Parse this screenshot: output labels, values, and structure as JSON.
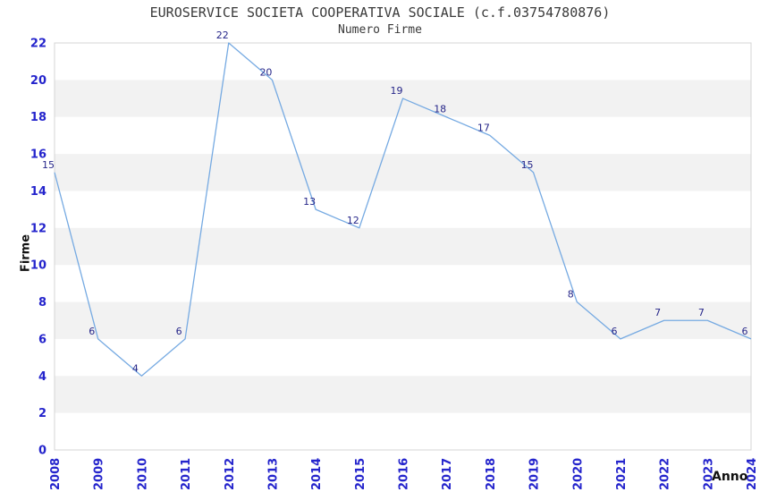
{
  "chart_data": {
    "type": "line",
    "title": "EUROSERVICE SOCIETA COOPERATIVA SOCIALE (c.f.03754780876)",
    "subtitle": "Numero Firme",
    "xlabel": "Anno",
    "ylabel": "Firme",
    "x": [
      "2008",
      "2009",
      "2010",
      "2011",
      "2012",
      "2013",
      "2014",
      "2015",
      "2016",
      "2017",
      "2018",
      "2019",
      "2020",
      "2021",
      "2022",
      "2023",
      "2024"
    ],
    "series": [
      {
        "name": "Numero Firme",
        "values": [
          15,
          6,
          4,
          6,
          22,
          20,
          13,
          12,
          19,
          18,
          17,
          15,
          8,
          6,
          7,
          7,
          6
        ]
      }
    ],
    "point_labels_shown": true,
    "ylim": [
      0,
      22
    ],
    "yticks": [
      0,
      2,
      4,
      6,
      8,
      10,
      12,
      14,
      16,
      18,
      20,
      22
    ],
    "gray_bands": [
      [
        2,
        4
      ],
      [
        6,
        8
      ],
      [
        10,
        12
      ],
      [
        14,
        16
      ],
      [
        18,
        20
      ]
    ],
    "x_tick_rotation": -90,
    "legend": "none",
    "markers": "none",
    "colors": {
      "line": "#76AAE2",
      "tick_label": "#2424CC",
      "point_label": "#262689",
      "band": "#F2F2F2",
      "plot_border": "#D4D4D4",
      "title": "#3a3a3a",
      "axis_label": "#111111",
      "background": "#FFFFFF"
    }
  }
}
